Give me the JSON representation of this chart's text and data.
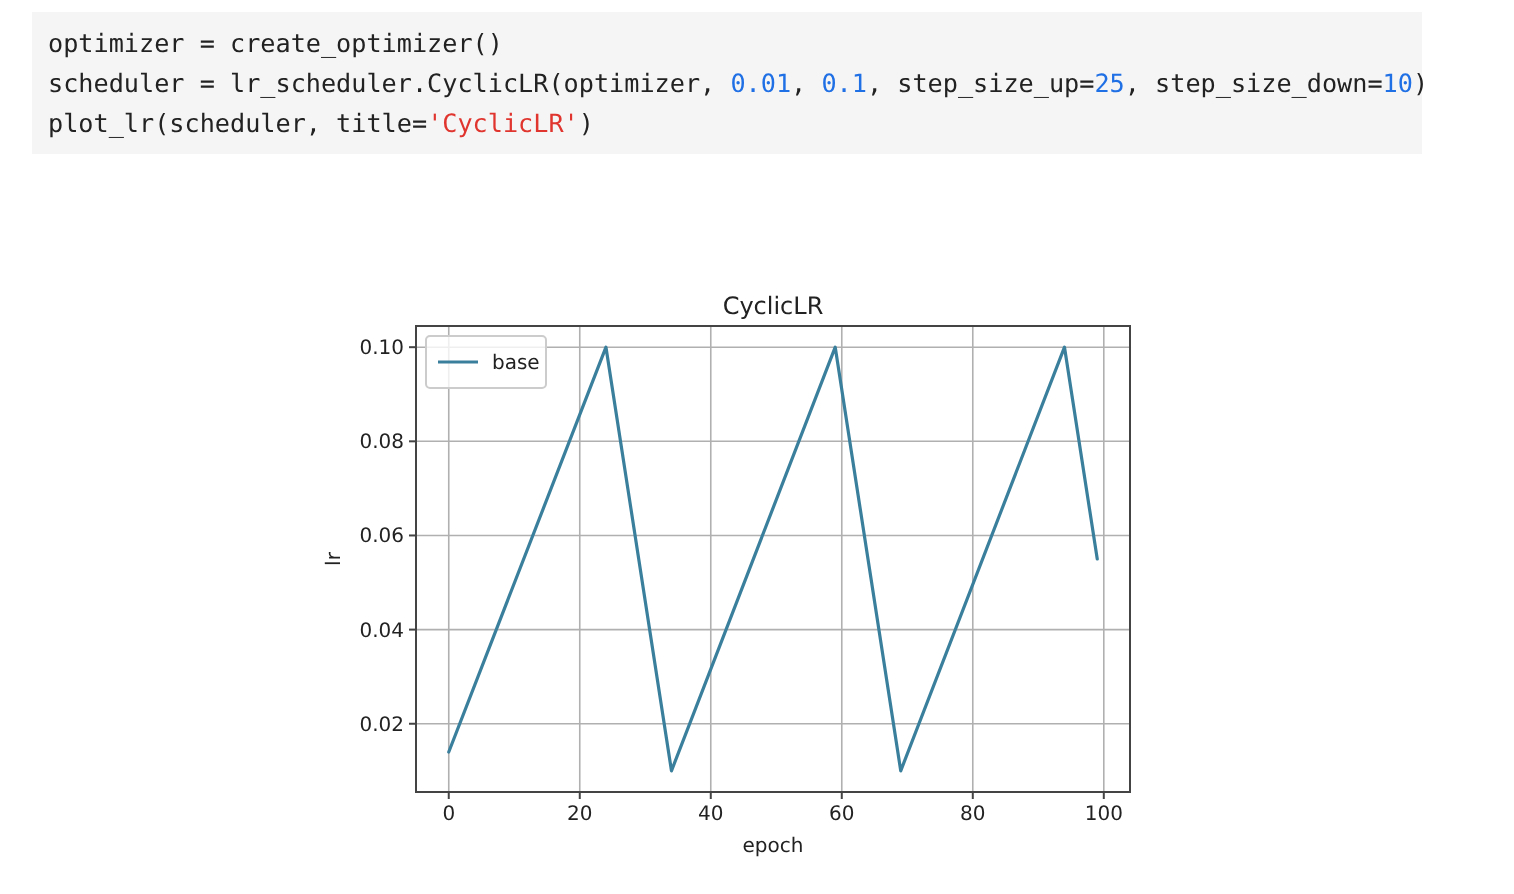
{
  "chart_data": {
    "type": "line",
    "title": "CyclicLR",
    "xlabel": "epoch",
    "ylabel": "lr",
    "annotations": [
      "optimizer = create_optimizer()",
      "scheduler = lr_scheduler.CyclicLR(optimizer, 0.01, 0.1, step_size_up=25, step_size_down=10)",
      "plot_lr(scheduler, title='CyclicLR')"
    ],
    "series": [
      {
        "name": "base",
        "color": "#3a7f9c",
        "x": [
          0,
          24,
          34,
          59,
          69,
          94,
          99
        ],
        "values": [
          0.014,
          0.1,
          0.01,
          0.1,
          0.01,
          0.1,
          0.055
        ]
      }
    ],
    "xlim": [
      -5,
      104
    ],
    "ylim": [
      0.0055,
      0.1045
    ],
    "xticks": [
      0,
      20,
      40,
      60,
      80,
      100
    ],
    "yticks": [
      0.02,
      0.04,
      0.06,
      0.08,
      {
        "value": 0.1,
        "label": "0.10"
      }
    ],
    "grid": true,
    "legend": "top left",
    "line_style": "solid"
  }
}
